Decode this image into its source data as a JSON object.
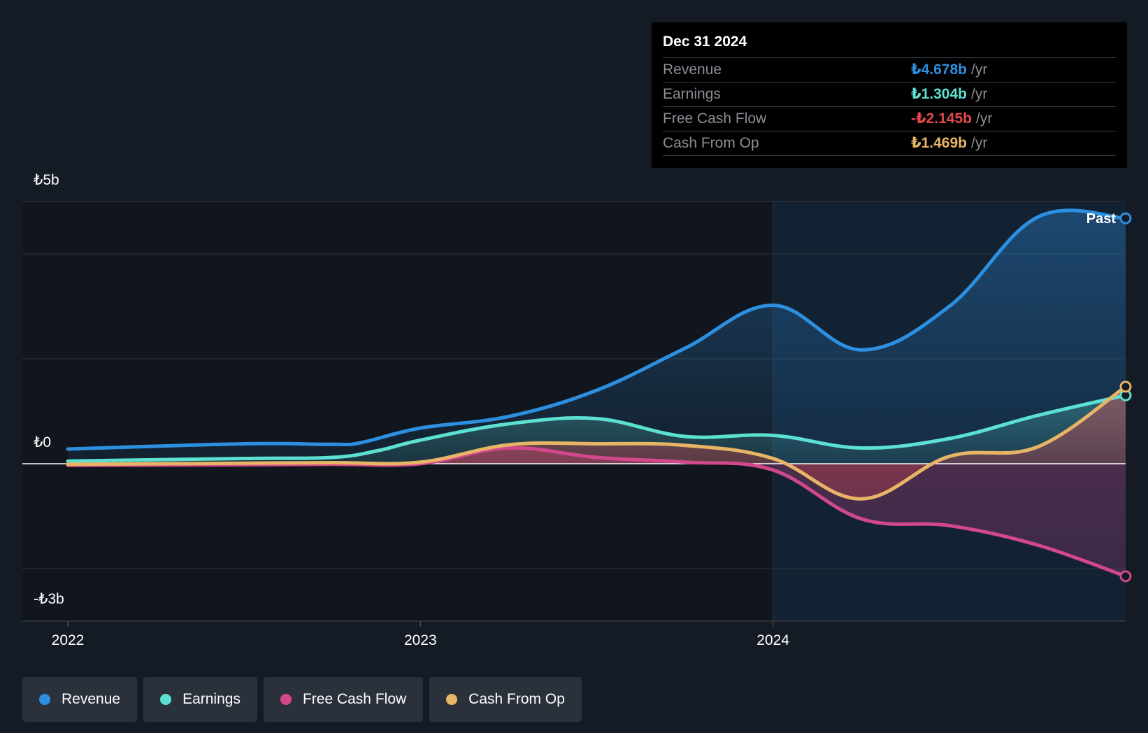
{
  "colors": {
    "revenue": "#2d8fe0",
    "earnings": "#5ce0d2",
    "free_cash_flow": "#d2488c",
    "cash_from_op": "#e8b465",
    "negative": "#e5484d",
    "background": "#151b24"
  },
  "tooltip": {
    "date": "Dec 31 2024",
    "rows": [
      {
        "label": "Revenue",
        "value": "₺4.678b",
        "unit": "/yr",
        "color": "#2d8fe0"
      },
      {
        "label": "Earnings",
        "value": "₺1.304b",
        "unit": "/yr",
        "color": "#5ce0d2"
      },
      {
        "label": "Free Cash Flow",
        "value": "-₺2.145b",
        "unit": "/yr",
        "color": "#e5484d"
      },
      {
        "label": "Cash From Op",
        "value": "₺1.469b",
        "unit": "/yr",
        "color": "#e8b465"
      }
    ]
  },
  "legend": [
    {
      "label": "Revenue",
      "color": "#2d8fe0"
    },
    {
      "label": "Earnings",
      "color": "#5ce0d2"
    },
    {
      "label": "Free Cash Flow",
      "color": "#d2488c"
    },
    {
      "label": "Cash From Op",
      "color": "#e8b465"
    }
  ],
  "chart_data": {
    "type": "line",
    "title": "",
    "xlabel": "",
    "ylabel": "",
    "x_range": [
      2022.0,
      2025.0
    ],
    "ylim": [
      -3,
      5
    ],
    "y_tick_labels": [
      {
        "value": 5,
        "label": "₺5b"
      },
      {
        "value": 0,
        "label": "₺0"
      },
      {
        "value": -3,
        "label": "-₺3b"
      }
    ],
    "x_tick_labels": [
      {
        "value": 2022,
        "label": "2022"
      },
      {
        "value": 2023,
        "label": "2023"
      },
      {
        "value": 2024,
        "label": "2024"
      }
    ],
    "gridlines_y": [
      5,
      4,
      2,
      0,
      -2
    ],
    "past_region_start": 2024.0,
    "past_label": "Past",
    "series": [
      {
        "name": "Revenue",
        "key": "revenue",
        "points": [
          [
            2022.0,
            0.28
          ],
          [
            2022.5,
            0.38
          ],
          [
            2022.75,
            0.37
          ],
          [
            2022.83,
            0.4
          ],
          [
            2023.0,
            0.68
          ],
          [
            2023.25,
            0.9
          ],
          [
            2023.5,
            1.4
          ],
          [
            2023.75,
            2.2
          ],
          [
            2024.0,
            3.02
          ],
          [
            2024.25,
            2.17
          ],
          [
            2024.5,
            3.0
          ],
          [
            2024.75,
            4.7
          ],
          [
            2025.0,
            4.678
          ]
        ]
      },
      {
        "name": "Earnings",
        "key": "earnings",
        "points": [
          [
            2022.0,
            0.05
          ],
          [
            2022.5,
            0.1
          ],
          [
            2022.75,
            0.12
          ],
          [
            2022.88,
            0.25
          ],
          [
            2023.0,
            0.45
          ],
          [
            2023.25,
            0.76
          ],
          [
            2023.5,
            0.86
          ],
          [
            2023.75,
            0.52
          ],
          [
            2024.0,
            0.54
          ],
          [
            2024.25,
            0.3
          ],
          [
            2024.5,
            0.48
          ],
          [
            2024.75,
            0.92
          ],
          [
            2025.0,
            1.304
          ]
        ]
      },
      {
        "name": "Free Cash Flow",
        "key": "free_cash_flow",
        "points": [
          [
            2022.0,
            -0.03
          ],
          [
            2022.5,
            -0.02
          ],
          [
            2022.75,
            -0.01
          ],
          [
            2023.0,
            0.0
          ],
          [
            2023.25,
            0.3
          ],
          [
            2023.5,
            0.12
          ],
          [
            2023.75,
            0.03
          ],
          [
            2024.0,
            -0.12
          ],
          [
            2024.25,
            -1.05
          ],
          [
            2024.5,
            -1.18
          ],
          [
            2024.75,
            -1.55
          ],
          [
            2025.0,
            -2.145
          ]
        ]
      },
      {
        "name": "Cash From Op",
        "key": "cash_from_op",
        "points": [
          [
            2022.0,
            -0.01
          ],
          [
            2022.5,
            0.01
          ],
          [
            2022.75,
            0.02
          ],
          [
            2023.0,
            0.03
          ],
          [
            2023.25,
            0.36
          ],
          [
            2023.5,
            0.38
          ],
          [
            2023.75,
            0.35
          ],
          [
            2024.0,
            0.1
          ],
          [
            2024.25,
            -0.67
          ],
          [
            2024.5,
            0.14
          ],
          [
            2024.75,
            0.32
          ],
          [
            2025.0,
            1.469
          ]
        ]
      }
    ]
  }
}
